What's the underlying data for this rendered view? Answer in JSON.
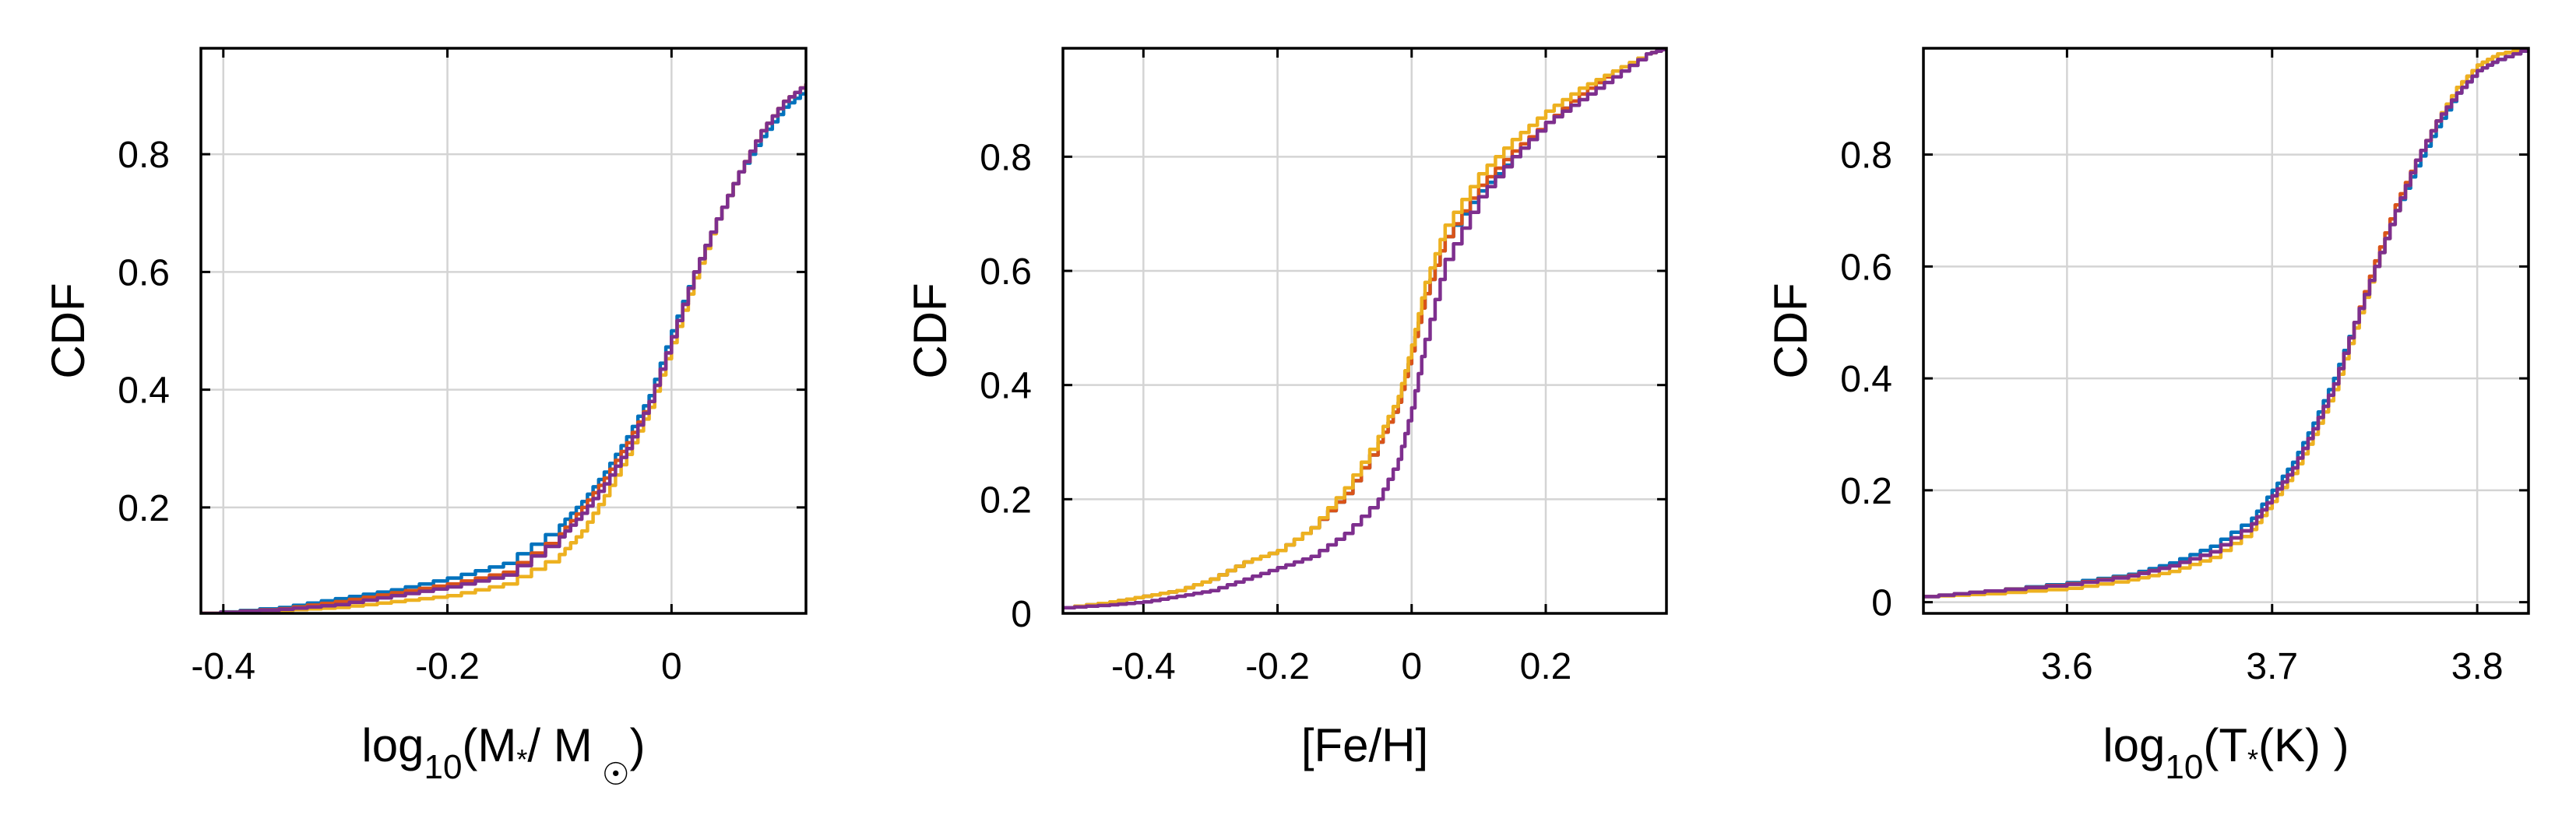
{
  "chart_data": [
    {
      "type": "line",
      "xlabel": "log10(M*/ M☉)",
      "xlabel_parts": {
        "base": "log",
        "sub": "10",
        "open": "(M",
        "star": "*",
        "mid": "/ M",
        "sun": "☉",
        "close": ")"
      },
      "ylabel": "CDF",
      "xlim": [
        -0.42,
        0.12
      ],
      "ylim": [
        0.02,
        0.98
      ],
      "xticks": [
        -0.4,
        -0.2,
        0
      ],
      "xtick_labels": [
        "-0.4",
        "-0.2",
        "0"
      ],
      "yticks": [
        0.2,
        0.4,
        0.6,
        0.8
      ],
      "ytick_labels": [
        "0.2",
        "0.4",
        "0.6",
        "0.8"
      ],
      "grid": true,
      "series": [
        {
          "color": "#0072BD",
          "x": [
            -0.42,
            -0.35,
            -0.3,
            -0.25,
            -0.2,
            -0.15,
            -0.1,
            -0.08,
            -0.06,
            -0.04,
            -0.02,
            0,
            0.02,
            0.04,
            0.06,
            0.08,
            0.1,
            0.12
          ],
          "y": [
            0.02,
            0.03,
            0.045,
            0.06,
            0.08,
            0.105,
            0.17,
            0.21,
            0.26,
            0.32,
            0.39,
            0.5,
            0.6,
            0.69,
            0.77,
            0.83,
            0.88,
            0.91
          ]
        },
        {
          "color": "#D95319",
          "x": [
            -0.42,
            -0.35,
            -0.3,
            -0.25,
            -0.2,
            -0.15,
            -0.1,
            -0.08,
            -0.06,
            -0.04,
            -0.02,
            0,
            0.02,
            0.04,
            0.06,
            0.08,
            0.1,
            0.12
          ],
          "y": [
            0.02,
            0.028,
            0.04,
            0.055,
            0.07,
            0.09,
            0.155,
            0.2,
            0.25,
            0.31,
            0.38,
            0.49,
            0.6,
            0.69,
            0.77,
            0.84,
            0.89,
            0.92
          ]
        },
        {
          "color": "#EDB120",
          "x": [
            -0.42,
            -0.35,
            -0.3,
            -0.25,
            -0.2,
            -0.15,
            -0.1,
            -0.08,
            -0.06,
            -0.04,
            -0.02,
            0,
            0.02,
            0.04,
            0.06,
            0.08,
            0.1,
            0.12
          ],
          "y": [
            0.02,
            0.025,
            0.03,
            0.04,
            0.05,
            0.07,
            0.12,
            0.16,
            0.22,
            0.29,
            0.37,
            0.48,
            0.59,
            0.69,
            0.77,
            0.84,
            0.89,
            0.92
          ]
        },
        {
          "color": "#7E2F8E",
          "x": [
            -0.42,
            -0.35,
            -0.3,
            -0.25,
            -0.2,
            -0.15,
            -0.1,
            -0.08,
            -0.06,
            -0.04,
            -0.02,
            0,
            0.02,
            0.04,
            0.06,
            0.08,
            0.1,
            0.12
          ],
          "y": [
            0.02,
            0.027,
            0.035,
            0.05,
            0.065,
            0.085,
            0.15,
            0.19,
            0.24,
            0.3,
            0.38,
            0.49,
            0.6,
            0.69,
            0.77,
            0.84,
            0.89,
            0.92
          ]
        }
      ]
    },
    {
      "type": "line",
      "xlabel": "[Fe/H]",
      "ylabel": "CDF",
      "xlim": [
        -0.52,
        0.38
      ],
      "ylim": [
        0.0,
        0.99
      ],
      "xticks": [
        -0.4,
        -0.2,
        0,
        0.2
      ],
      "xtick_labels": [
        "-0.4",
        "-0.2",
        "0",
        "0.2"
      ],
      "yticks": [
        0,
        0.2,
        0.4,
        0.6,
        0.8
      ],
      "ytick_labels": [
        "0",
        "0.2",
        "0.4",
        "0.6",
        "0.8"
      ],
      "grid": true,
      "series": [
        {
          "color": "#0072BD",
          "x": [
            -0.52,
            -0.45,
            -0.4,
            -0.35,
            -0.3,
            -0.25,
            -0.2,
            -0.15,
            -0.1,
            -0.05,
            -0.02,
            0,
            0.02,
            0.05,
            0.1,
            0.15,
            0.2,
            0.25,
            0.3,
            0.35,
            0.38
          ],
          "y": [
            0.01,
            0.02,
            0.03,
            0.04,
            0.06,
            0.09,
            0.11,
            0.15,
            0.21,
            0.3,
            0.37,
            0.46,
            0.56,
            0.66,
            0.74,
            0.8,
            0.86,
            0.91,
            0.95,
            0.98,
            0.99
          ]
        },
        {
          "color": "#D95319",
          "x": [
            -0.52,
            -0.45,
            -0.4,
            -0.35,
            -0.3,
            -0.25,
            -0.2,
            -0.15,
            -0.1,
            -0.05,
            -0.02,
            0,
            0.02,
            0.05,
            0.1,
            0.15,
            0.2,
            0.25,
            0.3,
            0.35,
            0.38
          ],
          "y": [
            0.01,
            0.02,
            0.03,
            0.04,
            0.06,
            0.09,
            0.11,
            0.15,
            0.21,
            0.3,
            0.37,
            0.46,
            0.56,
            0.66,
            0.75,
            0.81,
            0.86,
            0.91,
            0.95,
            0.98,
            0.99
          ]
        },
        {
          "color": "#EDB120",
          "x": [
            -0.52,
            -0.45,
            -0.4,
            -0.35,
            -0.3,
            -0.25,
            -0.2,
            -0.15,
            -0.1,
            -0.05,
            -0.02,
            0,
            0.02,
            0.05,
            0.1,
            0.15,
            0.2,
            0.25,
            0.3,
            0.35,
            0.38
          ],
          "y": [
            0.01,
            0.02,
            0.03,
            0.04,
            0.06,
            0.09,
            0.11,
            0.15,
            0.22,
            0.31,
            0.38,
            0.47,
            0.58,
            0.68,
            0.77,
            0.83,
            0.88,
            0.92,
            0.95,
            0.98,
            0.99
          ]
        },
        {
          "color": "#7E2F8E",
          "x": [
            -0.52,
            -0.45,
            -0.4,
            -0.35,
            -0.3,
            -0.25,
            -0.2,
            -0.15,
            -0.1,
            -0.05,
            -0.02,
            0,
            0.02,
            0.05,
            0.1,
            0.15,
            0.2,
            0.25,
            0.3,
            0.35,
            0.38
          ],
          "y": [
            0.01,
            0.015,
            0.02,
            0.03,
            0.04,
            0.06,
            0.08,
            0.1,
            0.14,
            0.2,
            0.27,
            0.36,
            0.48,
            0.62,
            0.73,
            0.8,
            0.86,
            0.9,
            0.94,
            0.98,
            0.99
          ]
        }
      ]
    },
    {
      "type": "line",
      "xlabel": "log10(T*(K) )",
      "xlabel_parts": {
        "base": "log",
        "sub": "10",
        "open": "(T",
        "star": "*",
        "close": "(K) )"
      },
      "ylabel": "CDF",
      "xlim": [
        3.53,
        3.825
      ],
      "ylim": [
        -0.02,
        0.99
      ],
      "xticks": [
        3.6,
        3.7,
        3.8
      ],
      "xtick_labels": [
        "3.6",
        "3.7",
        "3.8"
      ],
      "yticks": [
        0,
        0.2,
        0.4,
        0.6,
        0.8
      ],
      "ytick_labels": [
        "0",
        "0.2",
        "0.4",
        "0.6",
        "0.8"
      ],
      "grid": true,
      "series": [
        {
          "color": "#0072BD",
          "x": [
            3.53,
            3.56,
            3.6,
            3.63,
            3.65,
            3.67,
            3.69,
            3.7,
            3.71,
            3.72,
            3.73,
            3.74,
            3.75,
            3.76,
            3.77,
            3.78,
            3.79,
            3.8,
            3.81,
            3.825
          ],
          "y": [
            0.01,
            0.02,
            0.035,
            0.05,
            0.07,
            0.1,
            0.15,
            0.2,
            0.25,
            0.32,
            0.4,
            0.5,
            0.6,
            0.7,
            0.78,
            0.85,
            0.91,
            0.95,
            0.97,
            0.99
          ]
        },
        {
          "color": "#D95319",
          "x": [
            3.53,
            3.56,
            3.6,
            3.63,
            3.65,
            3.67,
            3.69,
            3.7,
            3.71,
            3.72,
            3.73,
            3.74,
            3.75,
            3.76,
            3.77,
            3.78,
            3.79,
            3.8,
            3.81,
            3.825
          ],
          "y": [
            0.01,
            0.02,
            0.033,
            0.048,
            0.065,
            0.09,
            0.14,
            0.19,
            0.24,
            0.31,
            0.39,
            0.5,
            0.61,
            0.71,
            0.79,
            0.86,
            0.92,
            0.96,
            0.98,
            0.99
          ]
        },
        {
          "color": "#EDB120",
          "x": [
            3.53,
            3.56,
            3.6,
            3.63,
            3.65,
            3.67,
            3.69,
            3.7,
            3.71,
            3.72,
            3.73,
            3.74,
            3.75,
            3.76,
            3.77,
            3.78,
            3.79,
            3.8,
            3.81,
            3.825
          ],
          "y": [
            0.01,
            0.015,
            0.025,
            0.04,
            0.055,
            0.08,
            0.13,
            0.18,
            0.23,
            0.3,
            0.38,
            0.49,
            0.6,
            0.7,
            0.79,
            0.86,
            0.92,
            0.96,
            0.98,
            0.99
          ]
        },
        {
          "color": "#7E2F8E",
          "x": [
            3.53,
            3.56,
            3.6,
            3.63,
            3.65,
            3.67,
            3.69,
            3.7,
            3.71,
            3.72,
            3.73,
            3.74,
            3.75,
            3.76,
            3.77,
            3.78,
            3.79,
            3.8,
            3.81,
            3.825
          ],
          "y": [
            0.01,
            0.02,
            0.032,
            0.047,
            0.065,
            0.09,
            0.14,
            0.19,
            0.24,
            0.31,
            0.39,
            0.5,
            0.6,
            0.7,
            0.79,
            0.86,
            0.91,
            0.95,
            0.97,
            0.99
          ]
        }
      ]
    }
  ]
}
